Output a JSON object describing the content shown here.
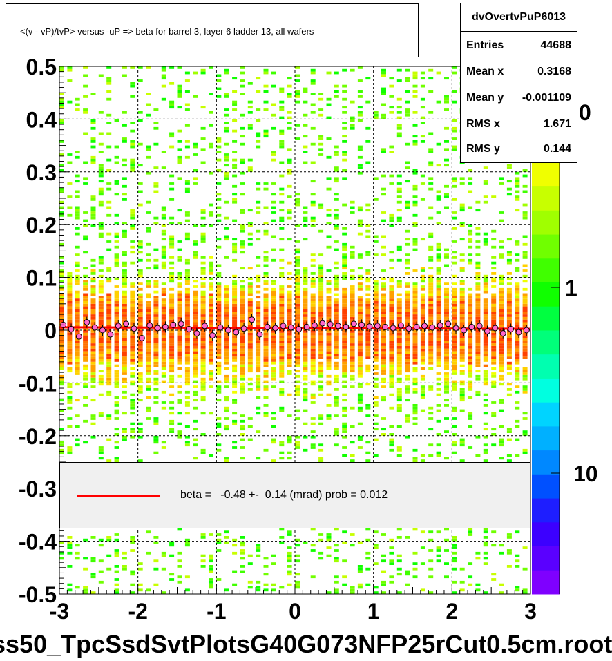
{
  "title": "<(v - vP)/tvP> versus  -uP => beta for barrel 3, layer 6 ladder 13, all wafers",
  "stats": {
    "name": "dvOvertvPuP6013",
    "rows": [
      {
        "label": "Entries",
        "value": "44688"
      },
      {
        "label": "Mean x",
        "value": "0.3168"
      },
      {
        "label": "Mean y",
        "value": "-0.001109"
      },
      {
        "label": "RMS x",
        "value": "1.671"
      },
      {
        "label": "RMS y",
        "value": "0.144"
      }
    ]
  },
  "legend": {
    "text": "beta =   -0.48 +-  0.14 (mrad) prob = 0.012",
    "line_color": "#ff0000"
  },
  "file_label": "ss50_TpcSsdSvtPlotsG40G073NFP25rCut0.5cm.root",
  "colorbar": {
    "labels": [
      "0",
      "1",
      "10"
    ]
  },
  "chart_data": {
    "type": "heatmap",
    "title": "<(v - vP)/tvP> versus  -uP => beta for barrel 3, layer 6 ladder 13, all wafers",
    "xlabel": "",
    "ylabel": "",
    "xlim": [
      -3,
      3
    ],
    "ylim": [
      -0.5,
      0.5
    ],
    "x_ticks": [
      "-3",
      "-2",
      "-1",
      "0",
      "1",
      "2",
      "3"
    ],
    "y_ticks": [
      "-0.5",
      "-0.4",
      "-0.3",
      "-0.2",
      "-0.1",
      "0",
      "0.1",
      "0.2",
      "0.3",
      "0.4",
      "0.5"
    ],
    "grid": true,
    "log_z": true,
    "color_palette": [
      "#7f00ff",
      "#5a00ff",
      "#3c00ff",
      "#1e1eff",
      "#0050ff",
      "#0088ff",
      "#00b0ff",
      "#00d4ff",
      "#00ffe0",
      "#00ffb0",
      "#00ff7a",
      "#00ff40",
      "#10ff00",
      "#40ff00",
      "#70ff00",
      "#a0ff00",
      "#c8ff00",
      "#f0ff00",
      "#ffd000",
      "#ffa000",
      "#ff7000",
      "#ff4000"
    ],
    "fit_line": {
      "slope_mrad": -0.48,
      "error_mrad": 0.14,
      "prob": 0.012,
      "y_at_center": 0.004,
      "color": "#ff0000"
    },
    "profile_points": {
      "x": [
        -2.95,
        -2.85,
        -2.75,
        -2.65,
        -2.55,
        -2.45,
        -2.35,
        -2.25,
        -2.15,
        -2.05,
        -1.95,
        -1.85,
        -1.75,
        -1.65,
        -1.55,
        -1.45,
        -1.35,
        -1.25,
        -1.15,
        -1.05,
        -0.95,
        -0.85,
        -0.75,
        -0.65,
        -0.55,
        -0.45,
        -0.35,
        -0.25,
        -0.15,
        -0.05,
        0.05,
        0.15,
        0.25,
        0.35,
        0.45,
        0.55,
        0.65,
        0.75,
        0.85,
        0.95,
        1.05,
        1.15,
        1.25,
        1.35,
        1.45,
        1.55,
        1.65,
        1.75,
        1.85,
        1.95,
        2.05,
        2.15,
        2.25,
        2.35,
        2.45,
        2.55,
        2.65,
        2.75,
        2.85,
        2.95
      ],
      "y": [
        0.01,
        0.002,
        -0.012,
        0.015,
        0.005,
        0.0,
        -0.008,
        0.008,
        0.012,
        0.003,
        -0.015,
        0.009,
        0.004,
        0.006,
        0.01,
        0.012,
        0.002,
        -0.006,
        0.008,
        -0.01,
        0.005,
        0.0,
        -0.004,
        0.003,
        0.02,
        -0.008,
        0.006,
        0.004,
        0.008,
        0.005,
        0.002,
        0.006,
        0.009,
        0.013,
        0.011,
        0.008,
        0.006,
        0.012,
        0.01,
        0.007,
        0.008,
        0.006,
        0.004,
        0.009,
        0.003,
        0.006,
        0.008,
        0.005,
        0.009,
        0.012,
        0.004,
        0.0,
        0.006,
        0.008,
        -0.002,
        0.004,
        -0.006,
        0.002,
        -0.004,
        0.0
      ]
    }
  }
}
